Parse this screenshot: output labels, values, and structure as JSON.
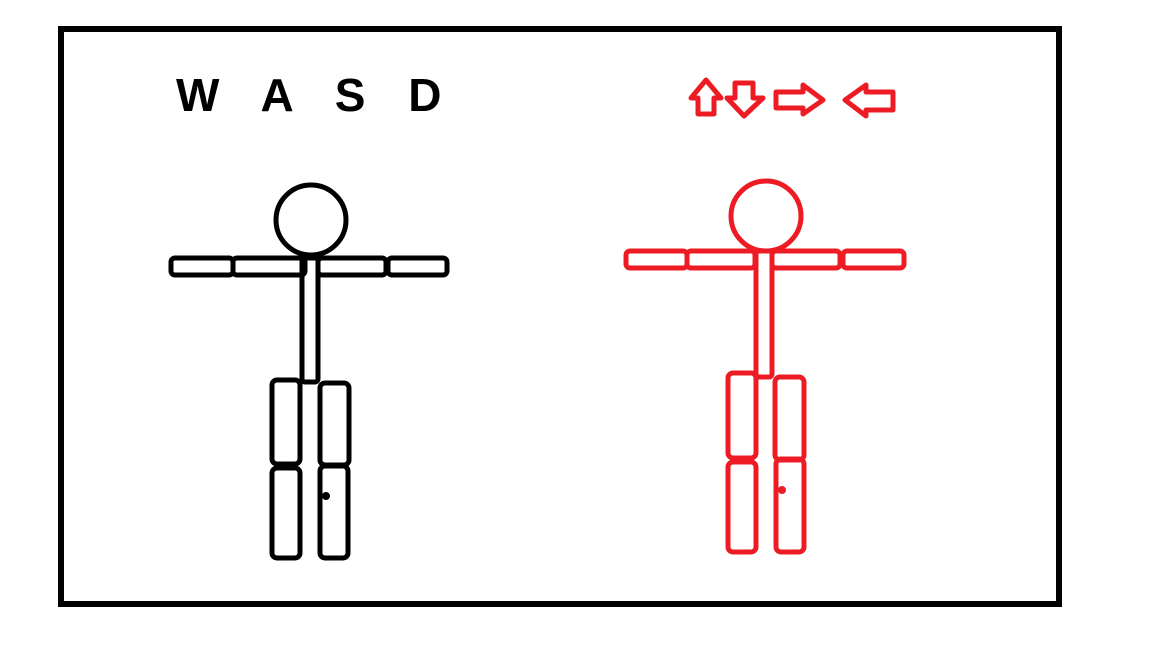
{
  "player1": {
    "label": "W A S D",
    "color": "#000000"
  },
  "player2": {
    "controls": [
      "arrow-up-icon",
      "arrow-down-icon",
      "arrow-right-icon",
      "arrow-left-icon"
    ],
    "color": "#ed1c24"
  }
}
